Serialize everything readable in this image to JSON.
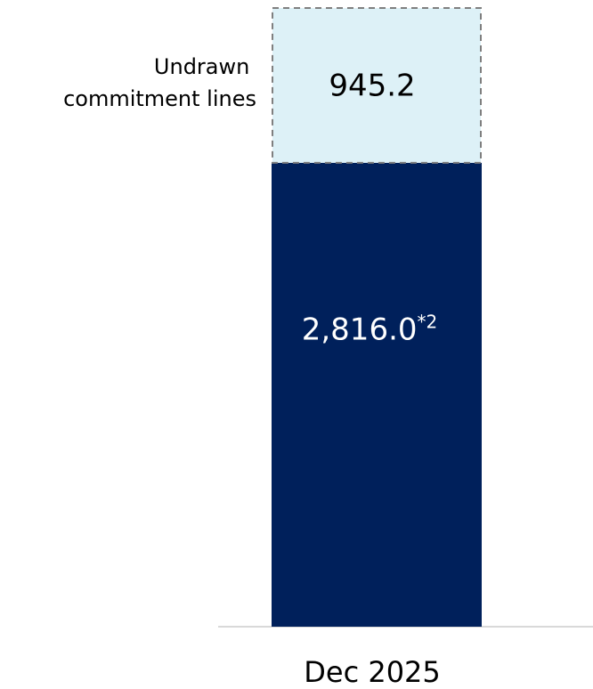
{
  "chart_data": {
    "type": "bar",
    "stacked": true,
    "categories": [
      "Dec 2025"
    ],
    "series": [
      {
        "name": "",
        "values": [
          2816.0
        ],
        "value_label": "2,816.0",
        "footnote_mark": "*2",
        "color": "#00205b",
        "fill_style": "solid"
      },
      {
        "name": "Undrawn commitment lines",
        "name_lines": [
          "Undrawn",
          "commitment lines"
        ],
        "values": [
          945.2
        ],
        "value_label": "945.2",
        "color": "#ddf1f7",
        "border_color": "#7f7f7f",
        "fill_style": "dashed-outline"
      }
    ],
    "title": "",
    "xlabel": "",
    "ylabel": "",
    "ylim": [
      0,
      3761.2
    ],
    "grid": false,
    "axis_color": "#d9d9d9"
  }
}
